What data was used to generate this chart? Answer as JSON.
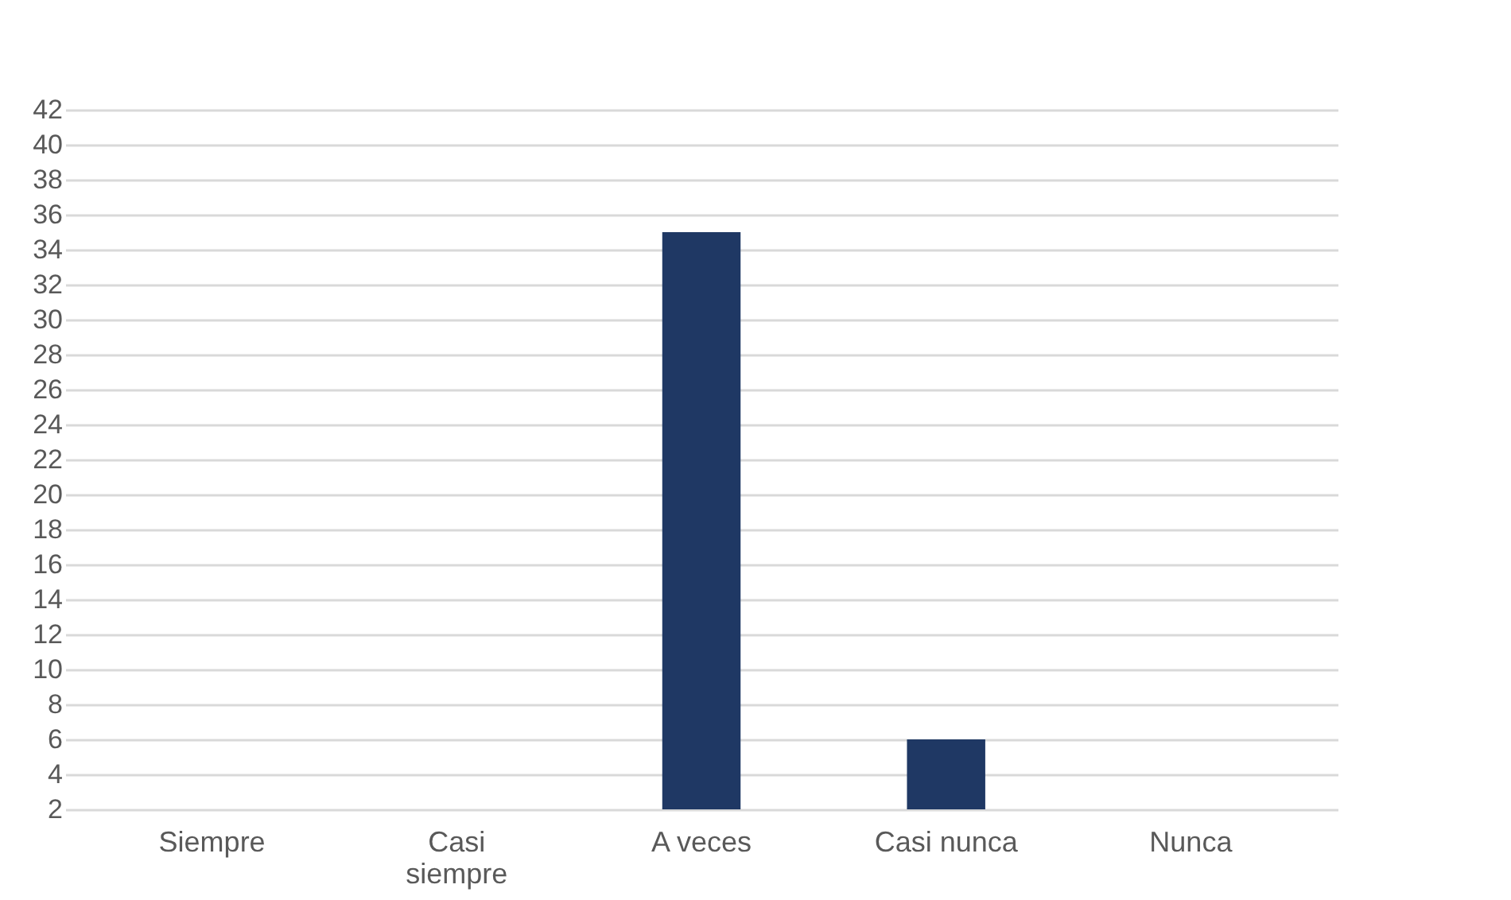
{
  "chart_data": {
    "type": "bar",
    "categories": [
      "Siempre",
      "Casi siempre",
      "A veces",
      "Casi nunca",
      "Nunca"
    ],
    "values": [
      2,
      2,
      35,
      6,
      2
    ],
    "color": "#1f3864",
    "ylim": [
      2,
      42
    ],
    "yticks": [
      2,
      4,
      6,
      8,
      10,
      12,
      14,
      16,
      18,
      20,
      22,
      24,
      26,
      28,
      30,
      32,
      34,
      36,
      38,
      40,
      42
    ],
    "grid": true
  }
}
